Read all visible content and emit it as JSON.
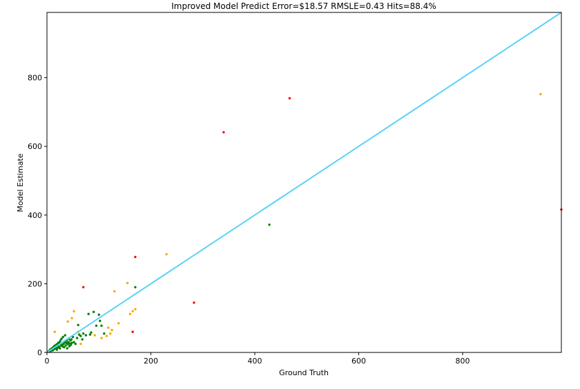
{
  "chart_data": {
    "type": "scatter",
    "title": "Improved Model Predict Error=$18.57 RMSLE=0.43 Hits=88.4%",
    "xlabel": "Ground Truth",
    "ylabel": "Model Estimate",
    "xlim": [
      0,
      990
    ],
    "ylim": [
      0,
      990
    ],
    "xticks": [
      0,
      200,
      400,
      600,
      800
    ],
    "yticks": [
      0,
      200,
      400,
      600,
      800
    ],
    "grid": false,
    "reference_line": {
      "x": [
        0,
        990
      ],
      "y": [
        0,
        990
      ],
      "color": "#5ad3f5"
    },
    "colors": {
      "green": "#008000",
      "orange": "#ffa500",
      "red": "#ff0000"
    },
    "series": [
      {
        "color": "green",
        "points": [
          [
            3,
            3
          ],
          [
            5,
            5
          ],
          [
            6,
            8
          ],
          [
            7,
            4
          ],
          [
            8,
            10
          ],
          [
            9,
            7
          ],
          [
            10,
            12
          ],
          [
            11,
            6
          ],
          [
            12,
            15
          ],
          [
            13,
            9
          ],
          [
            14,
            18
          ],
          [
            15,
            11
          ],
          [
            16,
            20
          ],
          [
            17,
            13
          ],
          [
            18,
            22
          ],
          [
            19,
            8
          ],
          [
            20,
            25
          ],
          [
            21,
            14
          ],
          [
            22,
            28
          ],
          [
            23,
            17
          ],
          [
            24,
            30
          ],
          [
            25,
            12
          ],
          [
            26,
            35
          ],
          [
            27,
            20
          ],
          [
            28,
            40
          ],
          [
            29,
            22
          ],
          [
            30,
            18
          ],
          [
            31,
            45
          ],
          [
            32,
            25
          ],
          [
            33,
            15
          ],
          [
            34,
            30
          ],
          [
            35,
            50
          ],
          [
            36,
            20
          ],
          [
            37,
            28
          ],
          [
            38,
            35
          ],
          [
            39,
            12
          ],
          [
            40,
            24
          ],
          [
            41,
            30
          ],
          [
            42,
            40
          ],
          [
            43,
            18
          ],
          [
            44,
            26
          ],
          [
            45,
            35
          ],
          [
            46,
            22
          ],
          [
            47,
            38
          ],
          [
            48,
            28
          ],
          [
            50,
            45
          ],
          [
            52,
            30
          ],
          [
            55,
            25
          ],
          [
            58,
            42
          ],
          [
            60,
            80
          ],
          [
            62,
            52
          ],
          [
            65,
            48
          ],
          [
            68,
            38
          ],
          [
            70,
            55
          ],
          [
            75,
            50
          ],
          [
            80,
            112
          ],
          [
            83,
            52
          ],
          [
            85,
            58
          ],
          [
            90,
            118
          ],
          [
            95,
            78
          ],
          [
            100,
            110
          ],
          [
            102,
            92
          ],
          [
            105,
            78
          ],
          [
            110,
            55
          ],
          [
            170,
            190
          ],
          [
            428,
            372
          ]
        ]
      },
      {
        "color": "orange",
        "points": [
          [
            15,
            60
          ],
          [
            40,
            90
          ],
          [
            48,
            100
          ],
          [
            52,
            120
          ],
          [
            60,
            60
          ],
          [
            65,
            25
          ],
          [
            92,
            50
          ],
          [
            105,
            42
          ],
          [
            115,
            48
          ],
          [
            118,
            72
          ],
          [
            122,
            55
          ],
          [
            125,
            65
          ],
          [
            130,
            178
          ],
          [
            138,
            85
          ],
          [
            155,
            202
          ],
          [
            160,
            112
          ],
          [
            165,
            120
          ],
          [
            170,
            126
          ],
          [
            230,
            286
          ],
          [
            950,
            752
          ]
        ]
      },
      {
        "color": "red",
        "points": [
          [
            70,
            190
          ],
          [
            165,
            60
          ],
          [
            170,
            278
          ],
          [
            283,
            145
          ],
          [
            340,
            641
          ],
          [
            467,
            740
          ],
          [
            990,
            416
          ]
        ]
      }
    ]
  }
}
